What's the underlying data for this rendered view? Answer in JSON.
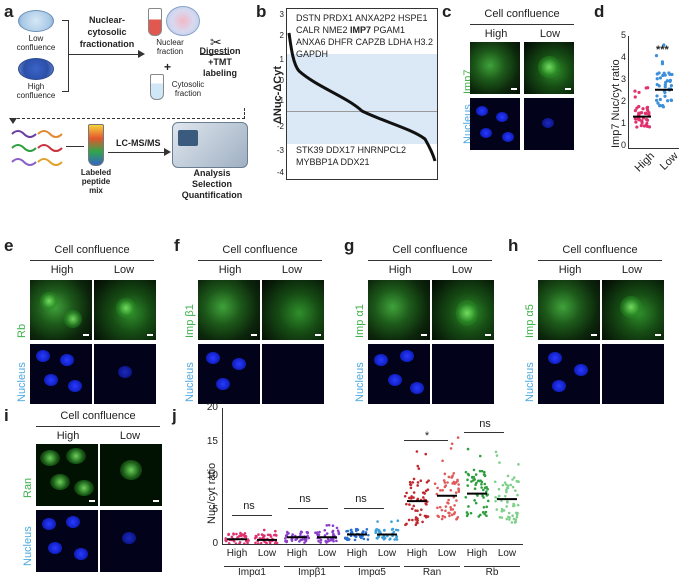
{
  "panels": {
    "a": "a",
    "b": "b",
    "c": "c",
    "d": "d",
    "e": "e",
    "f": "f",
    "g": "g",
    "h": "h",
    "i": "i",
    "j": "j"
  },
  "workflow": {
    "low_confluence": "Low\nconfluence",
    "high_confluence": "High\nconfluence",
    "fractionation": "Nuclear-\ncytosolic\nfractionation",
    "nuclear_fraction": "Nuclear\nfraction",
    "plus": "+",
    "cytosolic_fraction": "Cytosolic\nfraction",
    "digestion": "Digestion\n+TMT\nlabeling",
    "lcms": "LC-MS/MS",
    "labeled_mix": "Labeled\npeptide\nmix",
    "analysis": "Analysis\nSelection\nQuantification"
  },
  "panel_b": {
    "ylabel": "ΔNuc-ΔCyt",
    "top_genes": [
      "DSTN PRDX1 ANXA2P2 HSPE1",
      "CALR NME2 IMP7 PGAM1",
      "ANXA6 DHFR CAPZB LDHA H3.2",
      "GAPDH"
    ],
    "bold_gene": "IMP7",
    "bottom_genes": [
      "STK39 DDX17 HNRNPCL2",
      "MYBBP1A DDX21"
    ],
    "yticks": [
      "3",
      "2",
      "1",
      "0",
      "-1",
      "-2",
      "-3",
      "-4"
    ]
  },
  "cell_confluence": "Cell confluence",
  "high": "High",
  "low": "Low",
  "nucleus": "Nucleus",
  "markers": {
    "c": "Imp7",
    "e": "Rb",
    "f": "Imp β1",
    "g": "Imp α1",
    "h": "Imp α5",
    "i": "Ran"
  },
  "panel_d": {
    "ylabel": "Imp7 Nuc/cyt ratio",
    "yticks": [
      "0",
      "1",
      "2",
      "3",
      "4",
      "5"
    ],
    "categories": [
      "High",
      "Low"
    ],
    "significance": "***"
  },
  "panel_j": {
    "ylabel": "Nuc/cyt ratio",
    "yticks": [
      "0",
      "5",
      "10",
      "15",
      "20"
    ],
    "groups": [
      "Impα1",
      "Impβ1",
      "Impα5",
      "Ran",
      "Rb"
    ],
    "significance": [
      "ns",
      "ns",
      "ns",
      "*",
      "ns"
    ]
  },
  "chart_data": [
    {
      "type": "scatter",
      "title": "",
      "ylabel": "Imp7 Nuc/cyt ratio",
      "ylim": [
        0,
        5
      ],
      "categories": [
        "High",
        "Low"
      ],
      "series": [
        {
          "name": "High",
          "mean": 1.4
        },
        {
          "name": "Low",
          "mean": 2.6
        }
      ]
    },
    {
      "type": "scatter",
      "title": "",
      "ylabel": "Nuc/cyt ratio",
      "ylim": [
        0,
        20
      ],
      "categories": [
        "Impα1 High",
        "Impα1 Low",
        "Impβ1 High",
        "Impβ1 Low",
        "Impα5 High",
        "Impα5 Low",
        "Ran High",
        "Ran Low",
        "Rb High",
        "Rb Low"
      ],
      "values": [
        0.7,
        0.6,
        1.0,
        1.0,
        1.4,
        1.4,
        6.3,
        7.1,
        7.4,
        6.6
      ]
    }
  ]
}
